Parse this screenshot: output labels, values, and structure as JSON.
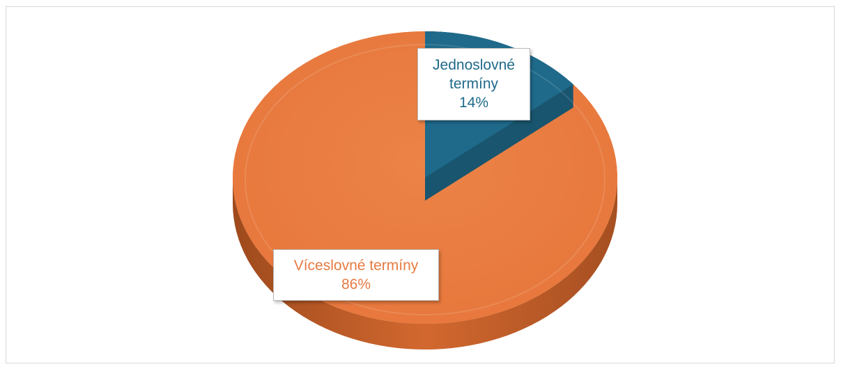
{
  "chart_data": {
    "type": "pie",
    "style": "3d",
    "slices": [
      {
        "label": "Jednoslovné termíny",
        "label_lines": [
          "Jednoslovné",
          "termíny"
        ],
        "percent_text": "14%",
        "value": 14,
        "color": "#1f6a8a"
      },
      {
        "label": "Víceslovné termíny",
        "label_lines": [
          "Víceslovné termíny"
        ],
        "percent_text": "86%",
        "value": 86,
        "color": "#e87a41"
      }
    ],
    "legend": "none",
    "data_labels": true
  }
}
